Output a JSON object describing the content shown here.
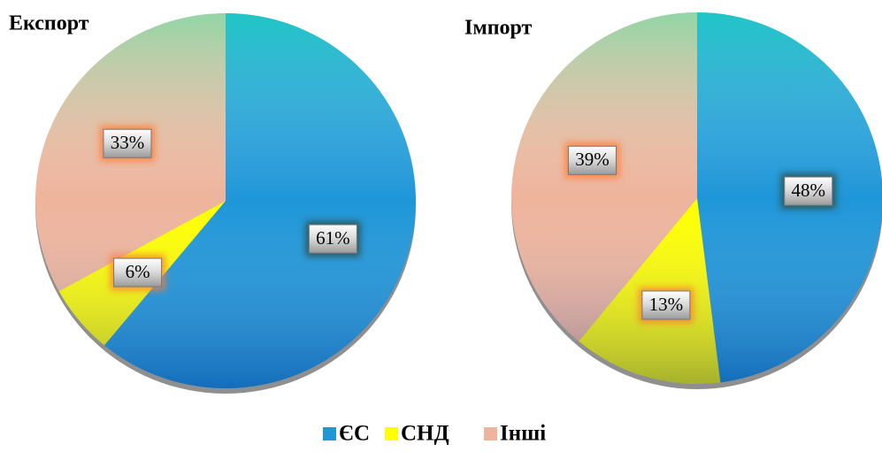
{
  "categories": [
    "ЄС",
    "СНД",
    "Інші"
  ],
  "colors": [
    "#1e96d8",
    "#ffff00",
    "#eeb49c"
  ],
  "chart_data": [
    {
      "type": "pie",
      "title": "Експорт",
      "values": [
        61,
        6,
        33
      ],
      "value_labels": [
        "61%",
        "6%",
        "33%"
      ]
    },
    {
      "type": "pie",
      "title": "Імпорт",
      "values": [
        48,
        13,
        39
      ],
      "value_labels": [
        "48%",
        "13%",
        "39%"
      ]
    }
  ]
}
